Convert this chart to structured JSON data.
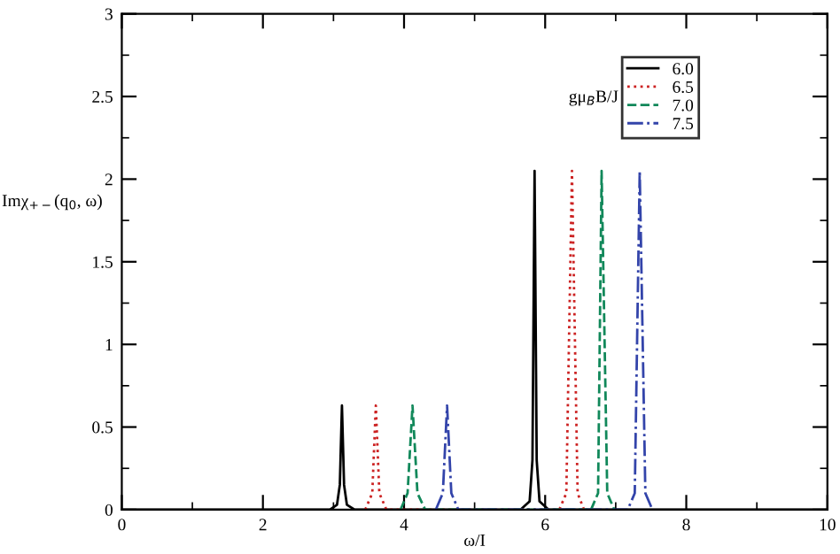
{
  "chart_data": {
    "type": "line",
    "xlabel": "ω/I",
    "ylabel": "Imχ$_{+−}$(q$_{0}$, ω)",
    "legend_title": "gμ$_{B}$B/J",
    "xlim": [
      0,
      10
    ],
    "ylim": [
      0,
      3
    ],
    "xticks": [
      0,
      2,
      4,
      6,
      8,
      10
    ],
    "yticks": [
      0,
      0.5,
      1,
      1.5,
      2,
      2.5,
      3
    ],
    "legend": "top right",
    "grid": false,
    "series": [
      {
        "name": "6.0",
        "color": "#000000",
        "line_style": "solid",
        "x": [
          0,
          2.95,
          3.05,
          3.09,
          3.12,
          3.15,
          3.19,
          3.3,
          5.65,
          5.78,
          5.82,
          5.85,
          5.88,
          5.92,
          6.05,
          10
        ],
        "values": [
          0,
          0,
          0.03,
          0.15,
          0.63,
          0.15,
          0.03,
          0,
          0,
          0.05,
          0.3,
          2.05,
          0.3,
          0.05,
          0,
          0
        ]
      },
      {
        "name": "6.5",
        "color": "#cc2222",
        "line_style": "dotted",
        "x": [
          3.45,
          3.55,
          3.6,
          3.65,
          3.75,
          6.2,
          6.3,
          6.38,
          6.46,
          6.55
        ],
        "values": [
          0,
          0.1,
          0.63,
          0.1,
          0,
          0,
          0.1,
          2.05,
          0.1,
          0
        ]
      },
      {
        "name": "7.0",
        "color": "#11885a",
        "line_style": "dashed",
        "x": [
          3.95,
          4.05,
          4.12,
          4.19,
          4.3,
          6.65,
          6.75,
          6.8,
          6.88,
          6.98
        ],
        "values": [
          0,
          0.1,
          0.63,
          0.1,
          0,
          0,
          0.1,
          2.05,
          0.1,
          0
        ]
      },
      {
        "name": "7.5",
        "color": "#3344aa",
        "line_style": "dashdot",
        "x": [
          4.45,
          4.55,
          4.61,
          4.67,
          4.77,
          7.17,
          7.27,
          7.34,
          7.42,
          7.52
        ],
        "values": [
          0,
          0.1,
          0.63,
          0.1,
          0,
          0,
          0.1,
          2.05,
          0.1,
          0
        ]
      }
    ]
  }
}
